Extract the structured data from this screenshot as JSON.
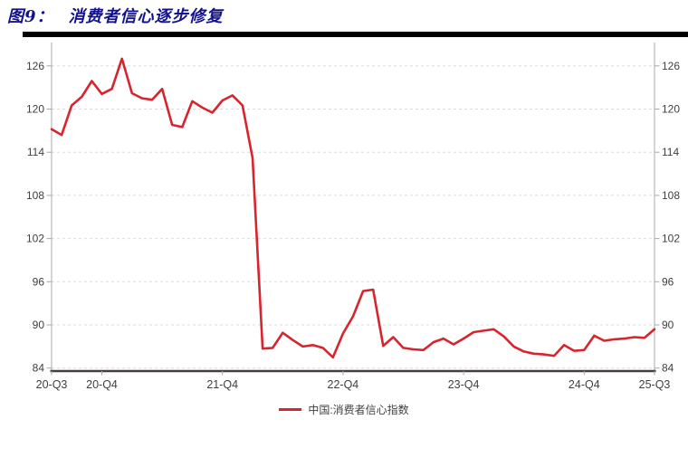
{
  "figure": {
    "number_label": "图9：",
    "title": "消费者信心逐步修复"
  },
  "legend": {
    "label": "中国:消费者信心指数"
  },
  "colors": {
    "title_text": "#12128e",
    "title_rule": "#000000",
    "series_line": "#d8242d",
    "gridline": "#dcdcdc",
    "side_axis": "#a9a9a9",
    "bottom_axis": "#473d3d",
    "tick_label": "#3f3f3f",
    "legend_text": "#404040",
    "background": "#ffffff"
  },
  "chart_data": {
    "type": "line",
    "title": "图9：消费者信心逐步修复",
    "grid": "horizontal-dashed",
    "legend_position": "bottom-center",
    "dual_y_axis": true,
    "ylim": [
      84,
      129
    ],
    "y_ticks": [
      84,
      90,
      96,
      102,
      108,
      114,
      120,
      126
    ],
    "x_tick_labels": [
      "20-Q3",
      "20-Q4",
      "21-Q4",
      "22-Q4",
      "23-Q4",
      "24-Q4",
      "25-Q3"
    ],
    "x_tick_month_index": [
      0,
      5,
      17,
      29,
      41,
      53,
      60
    ],
    "x_months": [
      "2020-07",
      "2020-08",
      "2020-09",
      "2020-10",
      "2020-11",
      "2020-12",
      "2021-01",
      "2021-02",
      "2021-03",
      "2021-04",
      "2021-05",
      "2021-06",
      "2021-07",
      "2021-08",
      "2021-09",
      "2021-10",
      "2021-11",
      "2021-12",
      "2022-01",
      "2022-02",
      "2022-03",
      "2022-04",
      "2022-05",
      "2022-06",
      "2022-07",
      "2022-08",
      "2022-09",
      "2022-10",
      "2022-11",
      "2022-12",
      "2023-01",
      "2023-02",
      "2023-03",
      "2023-04",
      "2023-05",
      "2023-06",
      "2023-07",
      "2023-08",
      "2023-09",
      "2023-10",
      "2023-11",
      "2023-12",
      "2024-01",
      "2024-02",
      "2024-03",
      "2024-04",
      "2024-05",
      "2024-06",
      "2024-07",
      "2024-08",
      "2024-09",
      "2024-10",
      "2024-11",
      "2024-12",
      "2025-01",
      "2025-02",
      "2025-03",
      "2025-04",
      "2025-05",
      "2025-06",
      "2025-07"
    ],
    "series": [
      {
        "name": "中国:消费者信心指数",
        "color": "#d8242d",
        "values": [
          117.2,
          116.4,
          120.5,
          121.7,
          123.9,
          122.1,
          122.8,
          127.0,
          122.2,
          121.5,
          121.3,
          122.8,
          117.8,
          117.5,
          121.1,
          120.2,
          119.5,
          121.2,
          121.9,
          120.5,
          113.2,
          86.7,
          86.8,
          88.9,
          87.9,
          87.0,
          87.2,
          86.8,
          85.5,
          88.8,
          91.2,
          94.7,
          94.9,
          87.1,
          88.3,
          86.8,
          86.6,
          86.5,
          87.6,
          88.1,
          87.3,
          88.1,
          89.0,
          89.2,
          89.4,
          88.4,
          87.0,
          86.3,
          86.0,
          85.9,
          85.7,
          87.2,
          86.4,
          86.5,
          88.5,
          87.8,
          88.0,
          88.1,
          88.3,
          88.2,
          89.4
        ]
      }
    ]
  }
}
